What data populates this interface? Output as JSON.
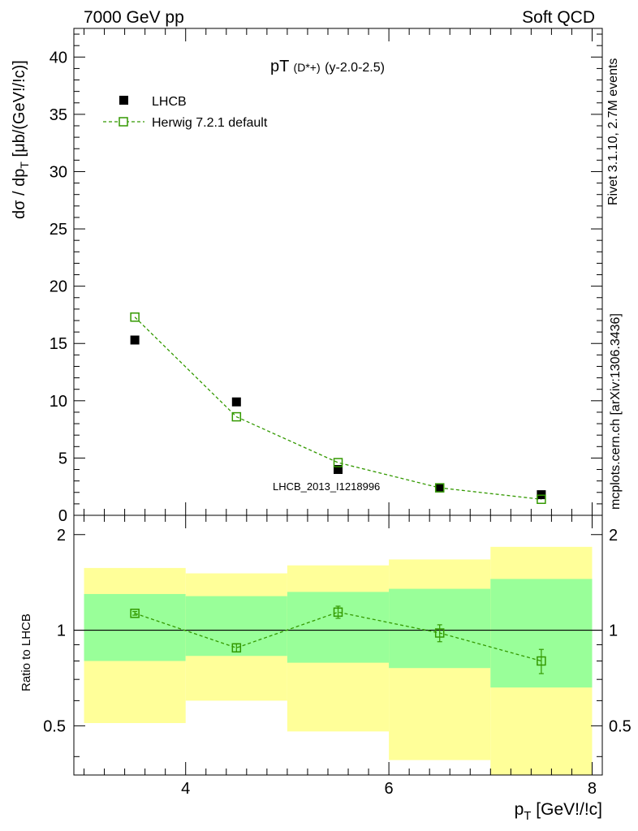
{
  "header": {
    "left": "7000 GeV pp",
    "right": "Soft QCD"
  },
  "side": {
    "rivet": "Rivet 3.1.10,  2.7M events",
    "mcplots": "mcplots.cern.ch [arXiv:1306.3436]"
  },
  "colors": {
    "data": "#000000",
    "mc": "#339900",
    "band_outer": "#ffff99",
    "band_inner": "#99ff99",
    "watermark": "#999999"
  },
  "chart_data": [
    {
      "type": "scatter",
      "title_main": "pT",
      "title_paren": "(D*+)",
      "title_range": "(y-2.0-2.5)",
      "ylabel": "dσ / dp_T [μb/(GeV!/!c)]",
      "xlabel": "p_T [GeV!/!c]",
      "analysis_label": "LHCB_2013_I1218996",
      "xlim": [
        2.9,
        8.1
      ],
      "ylim": [
        0,
        42.5
      ],
      "y_ticks": [
        0,
        5,
        10,
        15,
        20,
        25,
        30,
        35,
        40
      ],
      "x_ticks": [
        4,
        6,
        8
      ],
      "legend": [
        {
          "name": "LHCB",
          "style": "filled-square"
        },
        {
          "name": "Herwig 7.2.1 default",
          "style": "open-square-dashed"
        }
      ],
      "series": [
        {
          "name": "LHCB",
          "x": [
            3.5,
            4.5,
            5.5,
            6.5,
            7.5
          ],
          "values": [
            15.3,
            9.9,
            4.0,
            2.4,
            1.8
          ]
        },
        {
          "name": "Herwig 7.2.1 default",
          "x": [
            3.5,
            4.5,
            5.5,
            6.5,
            7.5
          ],
          "values": [
            17.3,
            8.6,
            4.6,
            2.4,
            1.4
          ]
        }
      ]
    },
    {
      "type": "scatter",
      "ylabel": "Ratio to LHCB",
      "xlabel": "p_T [GeV!/!c]",
      "xlim": [
        2.9,
        8.1
      ],
      "ylim": [
        0.35,
        2.3
      ],
      "y_tick_labels": [
        0.5,
        1,
        2
      ],
      "x_ticks": [
        4,
        6,
        8
      ],
      "reference_line": 1,
      "bins": [
        {
          "lo": 3,
          "hi": 4,
          "inner": [
            0.8,
            1.3
          ],
          "outer": [
            0.51,
            1.57
          ]
        },
        {
          "lo": 4,
          "hi": 5,
          "inner": [
            0.83,
            1.28
          ],
          "outer": [
            0.6,
            1.51
          ]
        },
        {
          "lo": 5,
          "hi": 6,
          "inner": [
            0.79,
            1.32
          ],
          "outer": [
            0.48,
            1.6
          ]
        },
        {
          "lo": 6,
          "hi": 7,
          "inner": [
            0.76,
            1.35
          ],
          "outer": [
            0.39,
            1.67
          ]
        },
        {
          "lo": 7,
          "hi": 8,
          "inner": [
            0.66,
            1.45
          ],
          "outer": [
            0.35,
            1.83
          ]
        }
      ],
      "series": [
        {
          "name": "Herwig 7.2.1 default",
          "x": [
            3.5,
            4.5,
            5.5,
            6.5,
            7.5
          ],
          "values": [
            1.13,
            0.88,
            1.14,
            0.98,
            0.8
          ],
          "err": [
            0.015,
            0.025,
            0.05,
            0.06,
            0.07
          ]
        }
      ]
    }
  ]
}
